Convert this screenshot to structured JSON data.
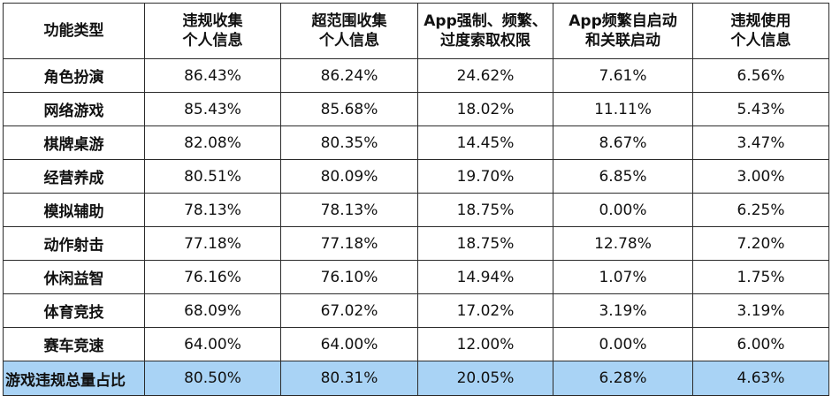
{
  "table": {
    "headers": [
      {
        "line1": "功能类型",
        "line2": ""
      },
      {
        "line1": "违规收集",
        "line2": "个人信息"
      },
      {
        "line1": "超范围收集",
        "line2": "个人信息"
      },
      {
        "line1": "App强制、频繁、",
        "line2": "过度索取权限"
      },
      {
        "line1": "App频繁自启动",
        "line2": "和关联启动"
      },
      {
        "line1": "违规使用",
        "line2": "个人信息"
      }
    ],
    "rows": [
      {
        "category": "角色扮演",
        "values": [
          "86.43%",
          "86.24%",
          "24.62%",
          "7.61%",
          "6.56%"
        ]
      },
      {
        "category": "网络游戏",
        "values": [
          "85.43%",
          "85.68%",
          "18.02%",
          "11.11%",
          "5.43%"
        ]
      },
      {
        "category": "棋牌桌游",
        "values": [
          "82.08%",
          "80.35%",
          "14.45%",
          "8.67%",
          "3.47%"
        ]
      },
      {
        "category": "经营养成",
        "values": [
          "80.51%",
          "80.09%",
          "19.70%",
          "6.85%",
          "3.00%"
        ]
      },
      {
        "category": "模拟辅助",
        "values": [
          "78.13%",
          "78.13%",
          "18.75%",
          "0.00%",
          "6.25%"
        ]
      },
      {
        "category": "动作射击",
        "values": [
          "77.18%",
          "77.18%",
          "18.75%",
          "12.78%",
          "7.20%"
        ]
      },
      {
        "category": "休闲益智",
        "values": [
          "76.16%",
          "76.10%",
          "14.94%",
          "1.07%",
          "1.75%"
        ]
      },
      {
        "category": "体育竞技",
        "values": [
          "68.09%",
          "67.02%",
          "17.02%",
          "3.19%",
          "3.19%"
        ]
      },
      {
        "category": "赛车竞速",
        "values": [
          "64.00%",
          "64.00%",
          "12.00%",
          "0.00%",
          "6.00%"
        ]
      }
    ],
    "summary": {
      "category": "游戏违规总量占比",
      "values": [
        "80.50%",
        "80.31%",
        "20.05%",
        "6.28%",
        "4.63%"
      ]
    }
  },
  "colors": {
    "summary_background": "#a9d3f5",
    "border": "#2b2b2b",
    "text": "#111111"
  }
}
